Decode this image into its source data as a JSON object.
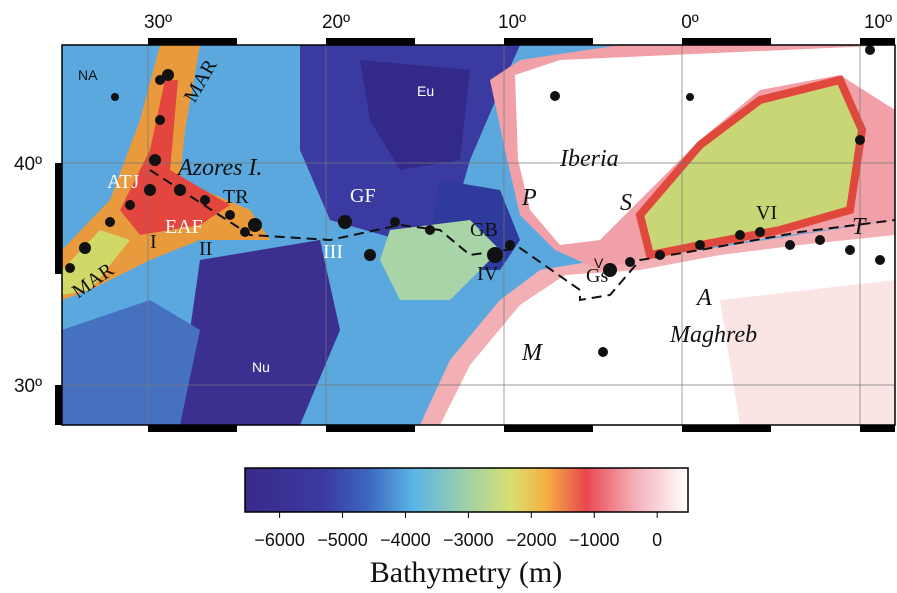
{
  "axes": {
    "top": [
      "30º",
      "20º",
      "10º",
      "0º",
      "10º"
    ],
    "left": [
      "40º",
      "30º"
    ]
  },
  "labels": {
    "na": "NA",
    "mar_north": "MAR",
    "mar_south": "MAR",
    "eu": "Eu",
    "azores": "Azores I.",
    "atj": "ATJ",
    "tr": "TR",
    "eaf": "EAF",
    "i": "I",
    "ii": "II",
    "gf": "GF",
    "iii": "III",
    "gb": "GB",
    "iv": "IV",
    "iberia": "Iberia",
    "p": "P",
    "s": "S",
    "v": "V",
    "gs": "Gs",
    "vi": "VI",
    "t": "T",
    "a": "A",
    "maghreb": "Maghreb",
    "m": "M",
    "nu": "Nu"
  },
  "colorbar": {
    "title": "Bathymetry (m)",
    "range": [
      -6550,
      490
    ],
    "ticks": [
      {
        "value": -6000,
        "label": "−6000"
      },
      {
        "value": -5000,
        "label": "−5000"
      },
      {
        "value": -4000,
        "label": "−4000"
      },
      {
        "value": -3000,
        "label": "−3000"
      },
      {
        "value": -2000,
        "label": "−2000"
      },
      {
        "value": -1000,
        "label": "−1000"
      },
      0
    ]
  }
}
